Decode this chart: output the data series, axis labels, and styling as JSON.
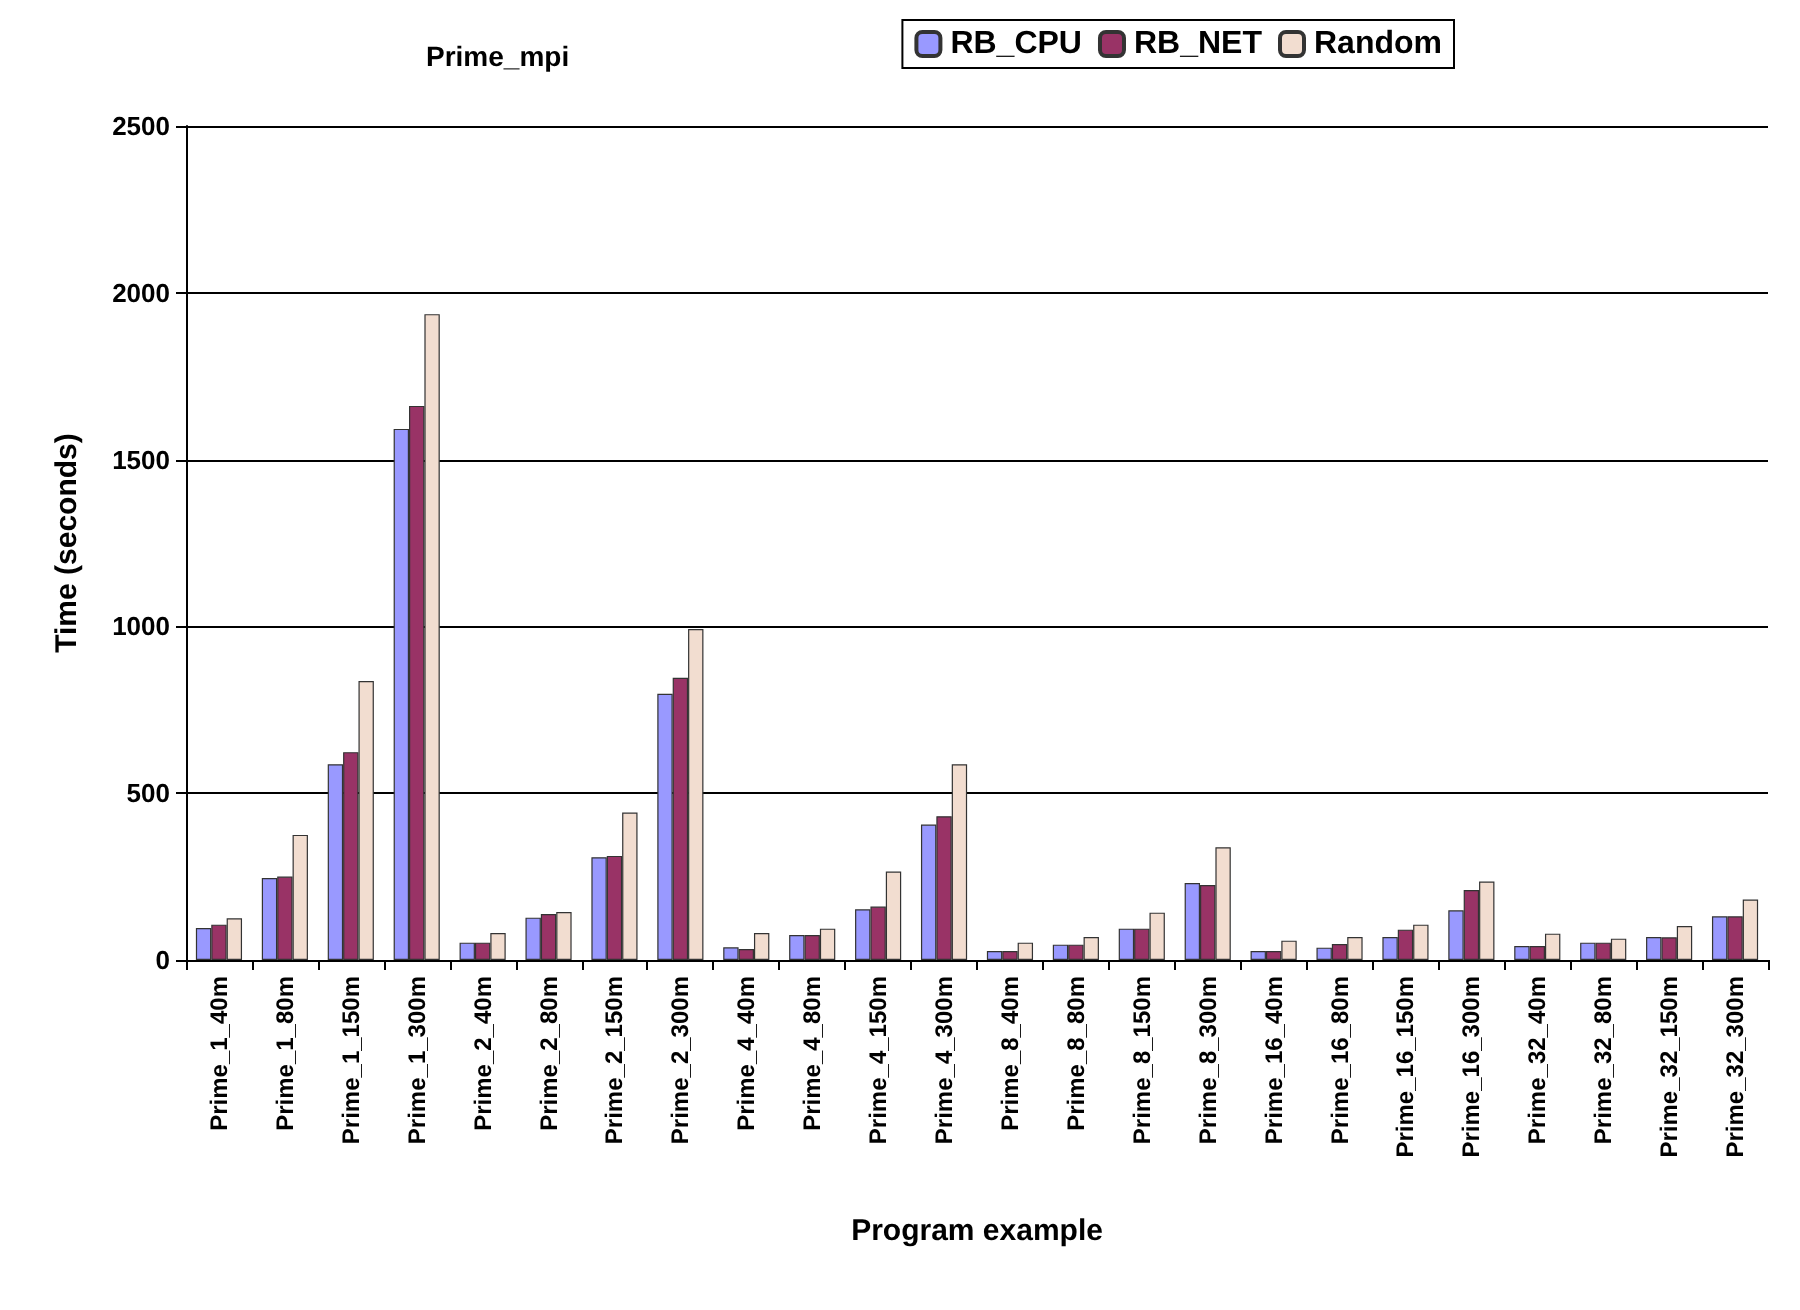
{
  "chart_data": {
    "type": "bar",
    "title": "Prime_mpi",
    "xlabel": "Program example",
    "ylabel": "Time (seconds)",
    "categories": [
      "Prime_1_40m",
      "Prime_1_80m",
      "Prime_1_150m",
      "Prime_1_300m",
      "Prime_2_40m",
      "Prime_2_80m",
      "Prime_2_150m",
      "Prime_2_300m",
      "Prime_4_40m",
      "Prime_4_80m",
      "Prime_4_150m",
      "Prime_4_300m",
      "Prime_8_40m",
      "Prime_8_80m",
      "Prime_8_150m",
      "Prime_8_300m",
      "Prime_16_40m",
      "Prime_16_80m",
      "Prime_16_150m",
      "Prime_16_300m",
      "Prime_32_40m",
      "Prime_32_80m",
      "Prime_32_150m",
      "Prime_32_300m"
    ],
    "series": [
      {
        "name": "RB_CPU",
        "color": "#9999ff",
        "values": [
          96,
          246,
          587,
          1592,
          52,
          127,
          308,
          798,
          38,
          75,
          152,
          406,
          27,
          46,
          94,
          231,
          27,
          37,
          69,
          149,
          42,
          52,
          69,
          131
        ]
      },
      {
        "name": "RB_NET",
        "color": "#993366",
        "values": [
          106,
          250,
          623,
          1661,
          52,
          138,
          312,
          846,
          33,
          75,
          160,
          431,
          27,
          46,
          94,
          225,
          27,
          48,
          91,
          210,
          42,
          52,
          68,
          131
        ]
      },
      {
        "name": "Random",
        "color": "#f2ddd0",
        "values": [
          125,
          375,
          836,
          1936,
          81,
          144,
          442,
          992,
          81,
          94,
          265,
          587,
          52,
          69,
          142,
          338,
          58,
          69,
          106,
          235,
          79,
          64,
          102,
          181
        ]
      }
    ],
    "ylim": [
      0,
      2500
    ],
    "yticks": [
      0,
      500,
      1000,
      1500,
      2000,
      2500
    ],
    "grid": "y",
    "legend": "top right"
  }
}
